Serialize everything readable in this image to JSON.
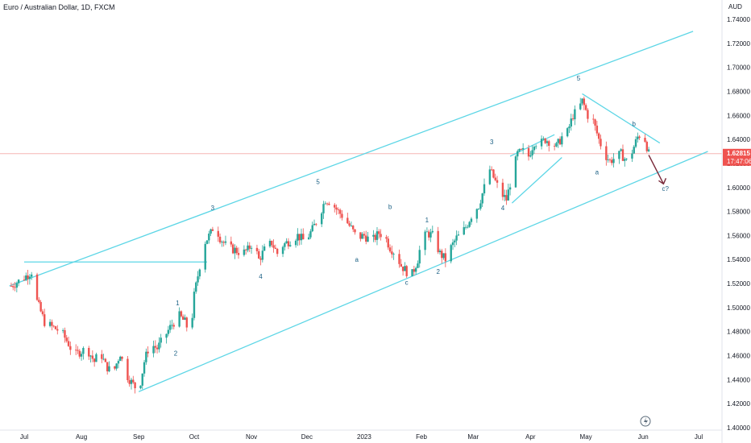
{
  "header": {
    "title": "Euro / Australian Dollar, 1D, FXCM"
  },
  "chart_data": {
    "type": "candlestick",
    "currency": "AUD",
    "ylim": [
      1.4,
      1.75
    ],
    "y_ticks": [
      "1.74000",
      "1.72000",
      "1.70000",
      "1.68000",
      "1.66000",
      "1.64000",
      "1.62000",
      "1.60000",
      "1.58000",
      "1.56000",
      "1.54000",
      "1.52000",
      "1.50000",
      "1.48000",
      "1.46000",
      "1.44000",
      "1.42000",
      "1.40000"
    ],
    "x_labels": [
      {
        "label": "Jul",
        "day": 0
      },
      {
        "label": "Aug",
        "day": 31
      },
      {
        "label": "Sep",
        "day": 62
      },
      {
        "label": "Oct",
        "day": 92
      },
      {
        "label": "Nov",
        "day": 123
      },
      {
        "label": "Dec",
        "day": 153
      },
      {
        "label": "2023",
        "day": 184
      },
      {
        "label": "Feb",
        "day": 215
      },
      {
        "label": "Mar",
        "day": 243
      },
      {
        "label": "Apr",
        "day": 274
      },
      {
        "label": "May",
        "day": 304
      },
      {
        "label": "Jun",
        "day": 335
      },
      {
        "label": "Jul",
        "day": 365
      }
    ],
    "price_label": {
      "value": "1.62815",
      "countdown": "17:47:06"
    },
    "colors": {
      "up": "#26a69a",
      "down": "#ef5350",
      "line": "#5dd6e6",
      "label": "#1a5f84",
      "arrow": "#7a2a3a",
      "price": "#ef5350"
    },
    "path": [
      [
        -7,
        1.518
      ],
      [
        0,
        1.525
      ],
      [
        4,
        1.53
      ],
      [
        7,
        1.505
      ],
      [
        11,
        1.488
      ],
      [
        15,
        1.484
      ],
      [
        20,
        1.48
      ],
      [
        24,
        1.47
      ],
      [
        27,
        1.46
      ],
      [
        30,
        1.463
      ],
      [
        34,
        1.466
      ],
      [
        38,
        1.455
      ],
      [
        41,
        1.464
      ],
      [
        44,
        1.452
      ],
      [
        48,
        1.445
      ],
      [
        52,
        1.462
      ],
      [
        55,
        1.445
      ],
      [
        58,
        1.438
      ],
      [
        62,
        1.43
      ],
      [
        65,
        1.455
      ],
      [
        68,
        1.47
      ],
      [
        72,
        1.466
      ],
      [
        76,
        1.476
      ],
      [
        80,
        1.486
      ],
      [
        84,
        1.493
      ],
      [
        87,
        1.488
      ],
      [
        90,
        1.477
      ],
      [
        92,
        1.51
      ],
      [
        95,
        1.535
      ],
      [
        98,
        1.555
      ],
      [
        101,
        1.562
      ],
      [
        103,
        1.57
      ],
      [
        106,
        1.558
      ],
      [
        110,
        1.55
      ],
      [
        114,
        1.548
      ],
      [
        118,
        1.545
      ],
      [
        121,
        1.548
      ],
      [
        124,
        1.555
      ],
      [
        127,
        1.54
      ],
      [
        130,
        1.548
      ],
      [
        134,
        1.554
      ],
      [
        137,
        1.545
      ],
      [
        140,
        1.552
      ],
      [
        144,
        1.556
      ],
      [
        148,
        1.56
      ],
      [
        152,
        1.555
      ],
      [
        156,
        1.565
      ],
      [
        160,
        1.578
      ],
      [
        163,
        1.59
      ],
      [
        166,
        1.588
      ],
      [
        170,
        1.58
      ],
      [
        173,
        1.575
      ],
      [
        177,
        1.566
      ],
      [
        180,
        1.558
      ],
      [
        184,
        1.56
      ],
      [
        188,
        1.555
      ],
      [
        192,
        1.562
      ],
      [
        195,
        1.56
      ],
      [
        198,
        1.55
      ],
      [
        201,
        1.545
      ],
      [
        204,
        1.535
      ],
      [
        207,
        1.53
      ],
      [
        210,
        1.528
      ],
      [
        213,
        1.54
      ],
      [
        215,
        1.555
      ],
      [
        218,
        1.562
      ],
      [
        221,
        1.56
      ],
      [
        225,
        1.545
      ],
      [
        228,
        1.54
      ],
      [
        231,
        1.55
      ],
      [
        234,
        1.558
      ],
      [
        237,
        1.562
      ],
      [
        240,
        1.57
      ],
      [
        243,
        1.58
      ],
      [
        246,
        1.585
      ],
      [
        249,
        1.6
      ],
      [
        252,
        1.615
      ],
      [
        255,
        1.605
      ],
      [
        258,
        1.595
      ],
      [
        261,
        1.59
      ],
      [
        264,
        1.61
      ],
      [
        267,
        1.628
      ],
      [
        270,
        1.63
      ],
      [
        273,
        1.626
      ],
      [
        276,
        1.638
      ],
      [
        279,
        1.636
      ],
      [
        282,
        1.64
      ],
      [
        285,
        1.638
      ],
      [
        288,
        1.634
      ],
      [
        291,
        1.642
      ],
      [
        294,
        1.646
      ],
      [
        297,
        1.66
      ],
      [
        300,
        1.665
      ],
      [
        302,
        1.672
      ],
      [
        305,
        1.66
      ],
      [
        308,
        1.655
      ],
      [
        311,
        1.64
      ],
      [
        314,
        1.628
      ],
      [
        317,
        1.622
      ],
      [
        320,
        1.625
      ],
      [
        323,
        1.628
      ],
      [
        326,
        1.622
      ],
      [
        329,
        1.63
      ],
      [
        332,
        1.642
      ],
      [
        334,
        1.645
      ],
      [
        336,
        1.64
      ],
      [
        338,
        1.628
      ]
    ],
    "trendlines": [
      {
        "name": "channel-upper",
        "points": [
          [
            -8,
            1.518
          ],
          [
            362,
            1.73
          ]
        ]
      },
      {
        "name": "channel-lower",
        "points": [
          [
            62,
            1.43
          ],
          [
            370,
            1.63
          ]
        ]
      },
      {
        "name": "horizontal-resistance",
        "points": [
          [
            0,
            1.538
          ],
          [
            99,
            1.538
          ]
        ]
      },
      {
        "name": "wedge-upper",
        "points": [
          [
            263,
            1.626
          ],
          [
            287,
            1.644
          ]
        ]
      },
      {
        "name": "wedge-lower",
        "points": [
          [
            264,
            1.587
          ],
          [
            291,
            1.625
          ]
        ]
      },
      {
        "name": "upper-wedge-line",
        "points": [
          [
            302,
            1.678
          ],
          [
            344,
            1.637
          ]
        ]
      }
    ],
    "forecast_arrow": [
      [
        338,
        1.627
      ],
      [
        346,
        1.603
      ]
    ],
    "wave_labels": [
      {
        "text": "1",
        "day": 83,
        "price": 1.502
      },
      {
        "text": "2",
        "day": 82,
        "price": 1.46
      },
      {
        "text": "3",
        "day": 102,
        "price": 1.581
      },
      {
        "text": "4",
        "day": 128,
        "price": 1.524
      },
      {
        "text": "5",
        "day": 159,
        "price": 1.603
      },
      {
        "text": "a",
        "day": 180,
        "price": 1.538
      },
      {
        "text": "b",
        "day": 198,
        "price": 1.582
      },
      {
        "text": "c",
        "day": 207,
        "price": 1.519
      },
      {
        "text": "1",
        "day": 218,
        "price": 1.571
      },
      {
        "text": "2",
        "day": 224,
        "price": 1.528
      },
      {
        "text": "3",
        "day": 253,
        "price": 1.636
      },
      {
        "text": "4",
        "day": 259,
        "price": 1.581
      },
      {
        "text": "5",
        "day": 300,
        "price": 1.689
      },
      {
        "text": "b",
        "day": 330,
        "price": 1.651
      },
      {
        "text": "a",
        "day": 310,
        "price": 1.611
      },
      {
        "text": "c?",
        "day": 347,
        "price": 1.597
      }
    ]
  }
}
